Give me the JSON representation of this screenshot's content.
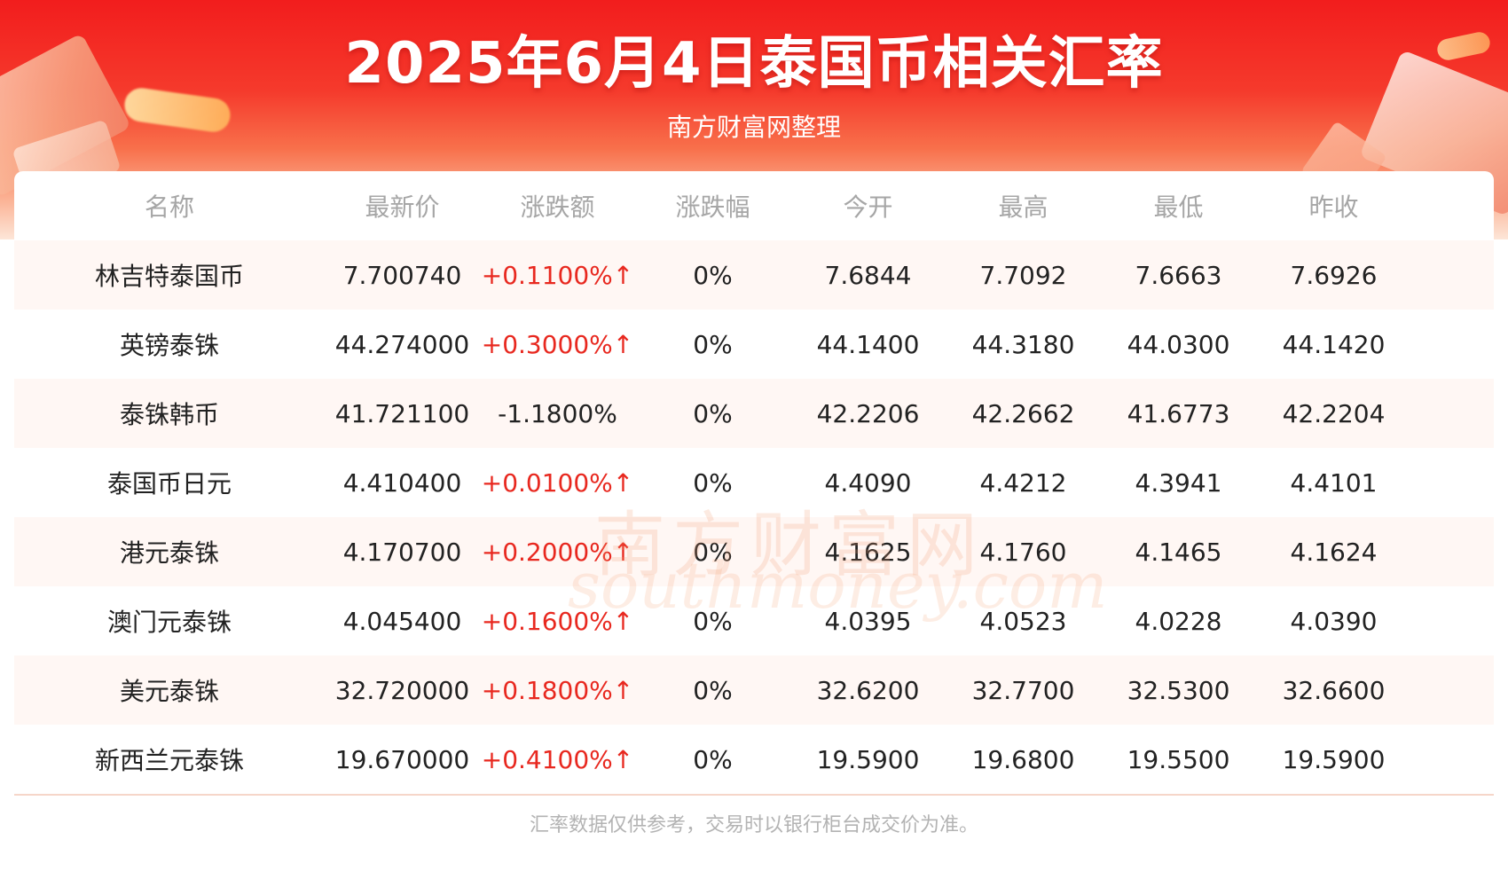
{
  "header": {
    "title": "2025年6月4日泰国币相关汇率",
    "subtitle": "南方财富网整理"
  },
  "table": {
    "columns": [
      "名称",
      "最新价",
      "涨跌额",
      "涨跌幅",
      "今开",
      "最高",
      "最低",
      "昨收"
    ],
    "rows": [
      {
        "name": "林吉特泰国币",
        "latest": "7.700740",
        "change": "+0.1100%↑",
        "pct": "0%",
        "open": "7.6844",
        "high": "7.7092",
        "low": "7.6663",
        "prev_close": "7.6926"
      },
      {
        "name": "英镑泰铢",
        "latest": "44.274000",
        "change": "+0.3000%↑",
        "pct": "0%",
        "open": "44.1400",
        "high": "44.3180",
        "low": "44.0300",
        "prev_close": "44.1420"
      },
      {
        "name": "泰铢韩币",
        "latest": "41.721100",
        "change": "-1.1800%",
        "pct": "0%",
        "open": "42.2206",
        "high": "42.2662",
        "low": "41.6773",
        "prev_close": "42.2204"
      },
      {
        "name": "泰国币日元",
        "latest": "4.410400",
        "change": "+0.0100%↑",
        "pct": "0%",
        "open": "4.4090",
        "high": "4.4212",
        "low": "4.3941",
        "prev_close": "4.4101"
      },
      {
        "name": "港元泰铢",
        "latest": "4.170700",
        "change": "+0.2000%↑",
        "pct": "0%",
        "open": "4.1625",
        "high": "4.1760",
        "low": "4.1465",
        "prev_close": "4.1624"
      },
      {
        "name": "澳门元泰铢",
        "latest": "4.045400",
        "change": "+0.1600%↑",
        "pct": "0%",
        "open": "4.0395",
        "high": "4.0523",
        "low": "4.0228",
        "prev_close": "4.0390"
      },
      {
        "name": "美元泰铢",
        "latest": "32.720000",
        "change": "+0.1800%↑",
        "pct": "0%",
        "open": "32.6200",
        "high": "32.7700",
        "low": "32.5300",
        "prev_close": "32.6600"
      },
      {
        "name": "新西兰元泰铢",
        "latest": "19.670000",
        "change": "+0.4100%↑",
        "pct": "0%",
        "open": "19.5900",
        "high": "19.6800",
        "low": "19.5500",
        "prev_close": "19.5900"
      }
    ]
  },
  "watermark": {
    "cn": "南方财富网",
    "en": "southmoney.com"
  },
  "footer": {
    "note": "汇率数据仅供参考，交易时以银行柜台成交价为准。"
  },
  "colors": {
    "up": "#e8281f",
    "down": "#222222",
    "banner_red": "#f21d1d"
  }
}
